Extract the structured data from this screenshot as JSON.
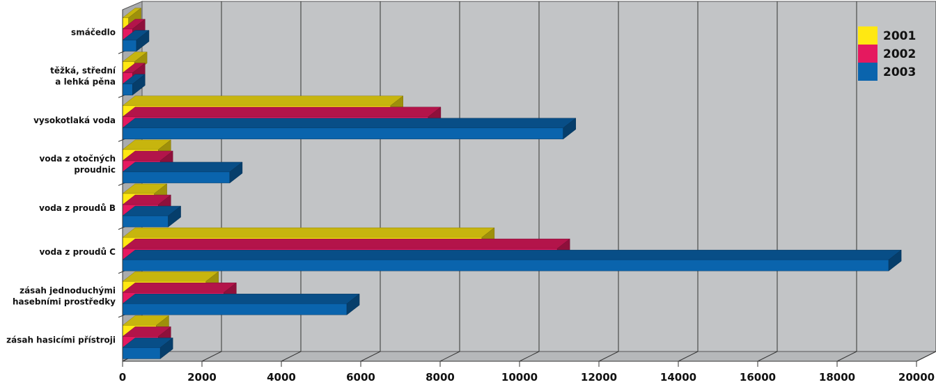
{
  "chart_data": {
    "type": "bar",
    "orientation": "horizontal",
    "style": "3d",
    "categories": [
      [
        "smáčedlo"
      ],
      [
        "těžká, střední",
        "a lehká pěna"
      ],
      [
        "vysokotlaká voda"
      ],
      [
        "voda z otočných",
        "proudnic"
      ],
      [
        "voda z proudů B"
      ],
      [
        "voda z proudů C"
      ],
      [
        "zásah jednoduchými",
        "hasebními prostředky"
      ],
      [
        "zásah hasicími přístroji"
      ]
    ],
    "series": [
      {
        "name": "2001",
        "color": "#ffe812",
        "values": [
          150,
          300,
          6750,
          900,
          800,
          9050,
          2100,
          850
        ]
      },
      {
        "name": "2002",
        "color": "#e5195f",
        "values": [
          250,
          250,
          7700,
          950,
          900,
          10950,
          2550,
          900
        ]
      },
      {
        "name": "2003",
        "color": "#0a64ad",
        "values": [
          350,
          250,
          11100,
          2700,
          1150,
          19300,
          5650,
          950
        ]
      }
    ],
    "xlim": [
      0,
      20000
    ],
    "xticks": [
      "0",
      "2000",
      "4000",
      "6000",
      "8000",
      "10000",
      "12000",
      "14000",
      "16000",
      "18000",
      "20000"
    ],
    "grid": true,
    "legend_position": "top-right",
    "title": "",
    "xlabel": "",
    "ylabel": ""
  }
}
